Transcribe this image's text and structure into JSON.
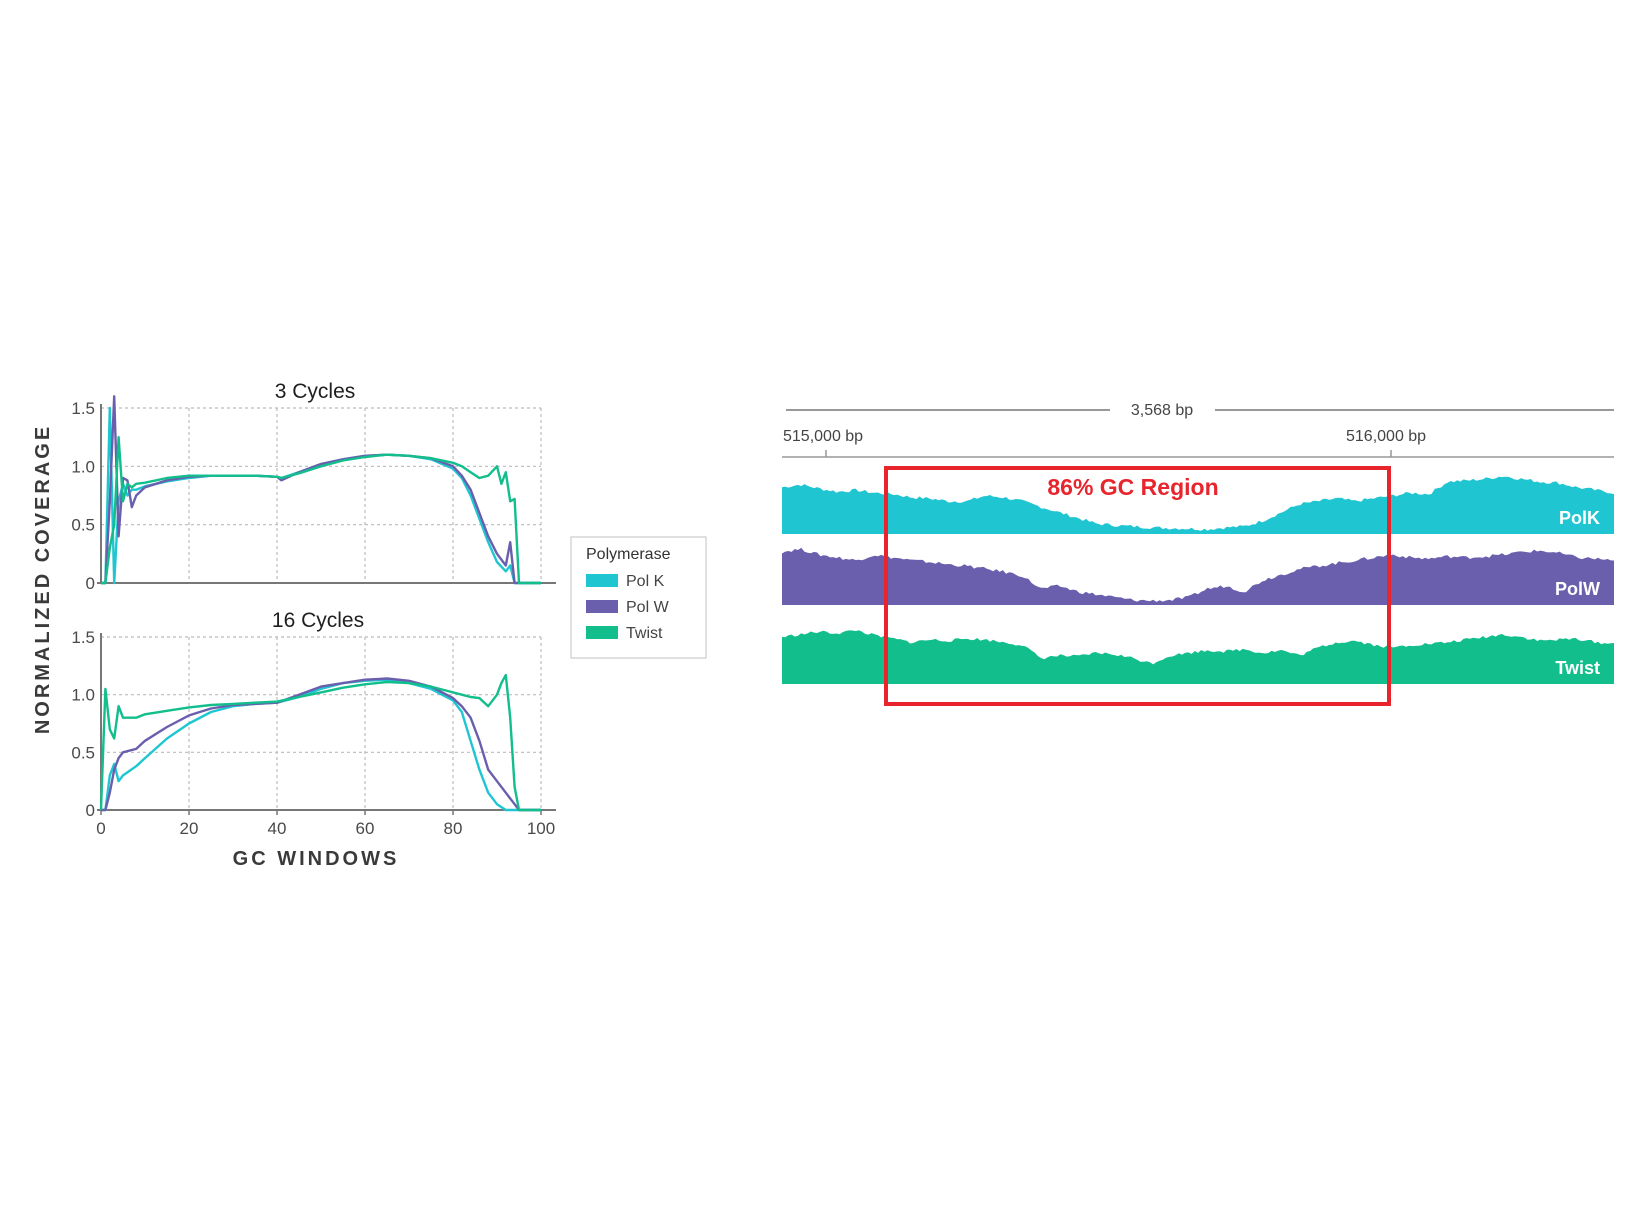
{
  "colors": {
    "polk": "#1fc6d1",
    "polw": "#6a5fad",
    "twist": "#12be8c",
    "region": "#e8242c",
    "axis": "#777777",
    "grid": "#bbbbbb"
  },
  "chart_data": [
    {
      "type": "line",
      "title": "3 Cycles",
      "xlabel": "GC WINDOWS",
      "ylabel": "NORMALIZED COVERAGE",
      "xlim": [
        0,
        100
      ],
      "ylim": [
        0,
        1.5
      ],
      "xticks": [
        "0",
        "20",
        "40",
        "60",
        "80",
        "100"
      ],
      "yticks": [
        "0",
        "0.5",
        "1.0",
        "1.5"
      ],
      "grid": true,
      "series": [
        {
          "name": "Pol K",
          "color": "#1fc6d1",
          "x": [
            0,
            1,
            2,
            3,
            4,
            5,
            6,
            7,
            8,
            10,
            15,
            20,
            25,
            30,
            35,
            40,
            41,
            45,
            50,
            55,
            60,
            65,
            70,
            75,
            80,
            82,
            84,
            86,
            88,
            90,
            92,
            93,
            94,
            95,
            100
          ],
          "y": [
            0,
            0,
            1.5,
            0,
            0.7,
            0.85,
            0.75,
            0.8,
            0.8,
            0.83,
            0.87,
            0.9,
            0.92,
            0.92,
            0.92,
            0.91,
            0.9,
            0.95,
            1.02,
            1.06,
            1.09,
            1.1,
            1.09,
            1.06,
            0.98,
            0.9,
            0.75,
            0.55,
            0.35,
            0.18,
            0.1,
            0.15,
            0,
            0,
            0
          ]
        },
        {
          "name": "Pol W",
          "color": "#6a5fad",
          "x": [
            0,
            1,
            2,
            3,
            4,
            5,
            6,
            7,
            8,
            10,
            15,
            20,
            25,
            30,
            35,
            40,
            41,
            45,
            50,
            55,
            60,
            65,
            70,
            75,
            80,
            82,
            84,
            86,
            88,
            90,
            92,
            93,
            94,
            95,
            100
          ],
          "y": [
            0,
            0,
            0.7,
            1.6,
            0.4,
            0.9,
            0.88,
            0.65,
            0.75,
            0.82,
            0.88,
            0.91,
            0.92,
            0.92,
            0.92,
            0.91,
            0.88,
            0.95,
            1.02,
            1.06,
            1.09,
            1.1,
            1.09,
            1.07,
            1.0,
            0.92,
            0.8,
            0.6,
            0.4,
            0.25,
            0.15,
            0.35,
            0,
            0,
            0
          ]
        },
        {
          "name": "Twist",
          "color": "#12be8c",
          "x": [
            0,
            1,
            2,
            3,
            4,
            5,
            6,
            7,
            8,
            10,
            15,
            20,
            25,
            30,
            35,
            40,
            41,
            45,
            50,
            55,
            60,
            65,
            70,
            75,
            80,
            82,
            84,
            86,
            88,
            90,
            91,
            92,
            93,
            94,
            95,
            100
          ],
          "y": [
            0,
            0,
            0.3,
            0.5,
            1.25,
            0.7,
            0.85,
            0.82,
            0.85,
            0.86,
            0.9,
            0.92,
            0.92,
            0.92,
            0.92,
            0.91,
            0.9,
            0.94,
            1.0,
            1.05,
            1.08,
            1.1,
            1.09,
            1.07,
            1.03,
            1.0,
            0.95,
            0.9,
            0.92,
            1.0,
            0.85,
            0.95,
            0.7,
            0.72,
            0,
            0
          ]
        }
      ]
    },
    {
      "type": "line",
      "title": "16 Cycles",
      "xlabel": "GC WINDOWS",
      "ylabel": "NORMALIZED COVERAGE",
      "xlim": [
        0,
        100
      ],
      "ylim": [
        0,
        1.5
      ],
      "xticks": [
        "0",
        "20",
        "40",
        "60",
        "80",
        "100"
      ],
      "yticks": [
        "0",
        "0.5",
        "1.0",
        "1.5"
      ],
      "grid": true,
      "series": [
        {
          "name": "Pol K",
          "color": "#1fc6d1",
          "x": [
            0,
            1,
            2,
            3,
            4,
            5,
            8,
            10,
            15,
            20,
            25,
            30,
            35,
            40,
            45,
            50,
            55,
            60,
            65,
            70,
            75,
            80,
            82,
            84,
            86,
            88,
            90,
            92,
            93,
            95,
            100
          ],
          "y": [
            0,
            0,
            0.3,
            0.4,
            0.25,
            0.3,
            0.38,
            0.45,
            0.62,
            0.75,
            0.85,
            0.9,
            0.92,
            0.93,
            0.98,
            1.05,
            1.1,
            1.12,
            1.13,
            1.1,
            1.05,
            0.95,
            0.85,
            0.6,
            0.35,
            0.15,
            0.05,
            0,
            0,
            0,
            0
          ]
        },
        {
          "name": "Pol W",
          "color": "#6a5fad",
          "x": [
            0,
            1,
            2,
            3,
            4,
            5,
            8,
            10,
            15,
            20,
            25,
            30,
            35,
            40,
            45,
            50,
            55,
            60,
            65,
            70,
            75,
            80,
            82,
            84,
            86,
            88,
            90,
            92,
            93,
            94,
            95,
            100
          ],
          "y": [
            0,
            0,
            0.15,
            0.35,
            0.45,
            0.5,
            0.53,
            0.6,
            0.72,
            0.82,
            0.88,
            0.91,
            0.92,
            0.93,
            1.0,
            1.07,
            1.1,
            1.13,
            1.14,
            1.12,
            1.07,
            0.97,
            0.9,
            0.8,
            0.6,
            0.35,
            0.25,
            0.15,
            0.1,
            0.05,
            0,
            0
          ]
        },
        {
          "name": "Twist",
          "color": "#12be8c",
          "x": [
            0,
            1,
            2,
            3,
            4,
            5,
            6,
            8,
            10,
            15,
            20,
            25,
            30,
            35,
            40,
            45,
            50,
            55,
            60,
            65,
            70,
            75,
            80,
            82,
            84,
            86,
            88,
            90,
            91,
            92,
            93,
            94,
            95,
            100
          ],
          "y": [
            0,
            1.05,
            0.7,
            0.62,
            0.9,
            0.8,
            0.8,
            0.8,
            0.83,
            0.86,
            0.89,
            0.91,
            0.92,
            0.93,
            0.94,
            0.98,
            1.02,
            1.06,
            1.09,
            1.11,
            1.1,
            1.07,
            1.02,
            1.0,
            0.98,
            0.97,
            0.9,
            1.0,
            1.1,
            1.17,
            0.8,
            0.2,
            0,
            0
          ]
        }
      ]
    },
    {
      "type": "area",
      "span_label": "3,568 bp",
      "xticks": [
        "515,000 bp",
        "516,000 bp"
      ],
      "region_label": "86% GC Region",
      "tracks": [
        {
          "name": "PolK",
          "color": "#1fc6d1",
          "profile": [
            0.8,
            0.85,
            0.78,
            0.72,
            0.75,
            0.7,
            0.68,
            0.62,
            0.6,
            0.55,
            0.55,
            0.65,
            0.62,
            0.55,
            0.45,
            0.35,
            0.25,
            0.15,
            0.12,
            0.1,
            0.08,
            0.07,
            0.06,
            0.05,
            0.08,
            0.1,
            0.2,
            0.35,
            0.5,
            0.55,
            0.6,
            0.55,
            0.6,
            0.65,
            0.7,
            0.68,
            0.9,
            0.92,
            0.95,
            1.0,
            0.95,
            0.9,
            0.88,
            0.8,
            0.75,
            0.7
          ]
        },
        {
          "name": "PolW",
          "color": "#6a5fad",
          "profile": [
            0.9,
            0.95,
            0.85,
            0.8,
            0.75,
            0.85,
            0.8,
            0.75,
            0.72,
            0.68,
            0.65,
            0.6,
            0.55,
            0.48,
            0.25,
            0.3,
            0.2,
            0.15,
            0.1,
            0.05,
            0.04,
            0.05,
            0.1,
            0.25,
            0.3,
            0.2,
            0.4,
            0.5,
            0.6,
            0.65,
            0.7,
            0.75,
            0.8,
            0.85,
            0.8,
            0.78,
            0.82,
            0.8,
            0.82,
            0.85,
            0.9,
            0.92,
            0.88,
            0.8,
            0.78,
            0.75
          ]
        },
        {
          "name": "Twist",
          "color": "#12be8c",
          "profile": [
            0.85,
            0.9,
            0.95,
            0.92,
            0.98,
            0.88,
            0.82,
            0.75,
            0.8,
            0.78,
            0.82,
            0.8,
            0.75,
            0.7,
            0.45,
            0.5,
            0.48,
            0.55,
            0.52,
            0.45,
            0.35,
            0.5,
            0.55,
            0.6,
            0.58,
            0.62,
            0.55,
            0.6,
            0.5,
            0.65,
            0.75,
            0.78,
            0.7,
            0.65,
            0.7,
            0.72,
            0.75,
            0.8,
            0.85,
            0.9,
            0.85,
            0.78,
            0.8,
            0.82,
            0.75,
            0.72
          ]
        }
      ]
    }
  ]
}
